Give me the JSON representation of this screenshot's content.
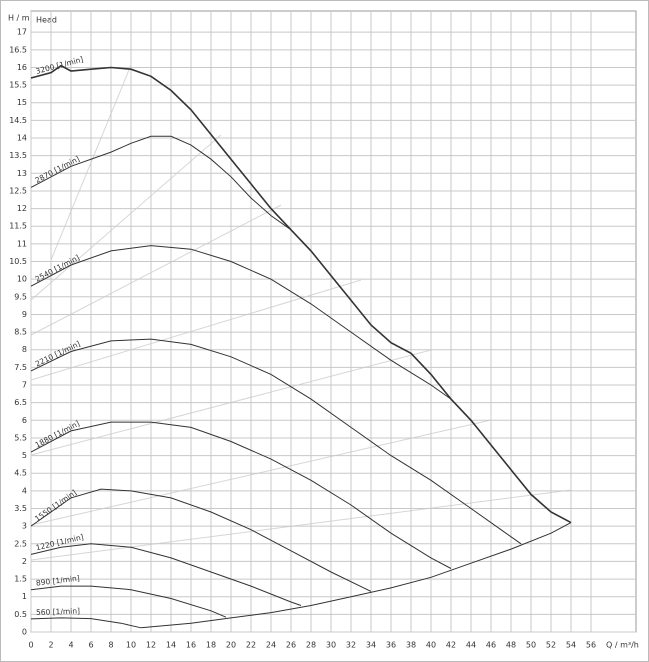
{
  "chart_data": {
    "type": "line",
    "title": "Head",
    "y_label": "H / m",
    "x_label": "Q / m³/h",
    "xlim": [
      0,
      60.5
    ],
    "ylim": [
      0,
      17.6
    ],
    "xticks": [
      0,
      2,
      4,
      6,
      8,
      10,
      12,
      14,
      16,
      18,
      20,
      22,
      24,
      26,
      28,
      30,
      32,
      34,
      36,
      38,
      40,
      42,
      44,
      46,
      48,
      50,
      52,
      54,
      56
    ],
    "yticks": [
      0,
      0.5,
      1,
      1.5,
      2,
      2.5,
      3,
      3.5,
      4,
      4.5,
      5,
      5.5,
      6,
      6.5,
      7,
      7.5,
      8,
      8.5,
      9,
      9.5,
      10,
      10.5,
      11,
      11.5,
      12,
      12.5,
      13,
      13.5,
      14,
      14.5,
      15,
      15.5,
      16,
      16.5,
      17
    ],
    "grid": true,
    "series": [
      {
        "name": "3200 [1/min]",
        "color": "#333333",
        "x": [
          0,
          2,
          3,
          4,
          6,
          8,
          10,
          12,
          14,
          16,
          18,
          20,
          22,
          24,
          26,
          28,
          30,
          32,
          34,
          36,
          38,
          40,
          42,
          44,
          46,
          48,
          50,
          52,
          54
        ],
        "values": [
          15.7,
          15.85,
          16.05,
          15.9,
          15.95,
          16.0,
          15.95,
          15.75,
          15.35,
          14.8,
          14.1,
          13.4,
          12.7,
          12.0,
          11.4,
          10.8,
          10.1,
          9.4,
          8.7,
          8.2,
          7.9,
          7.3,
          6.6,
          6.0,
          5.3,
          4.6,
          3.9,
          3.4,
          3.1
        ]
      },
      {
        "name": "2870 [1/min]",
        "color": "#333333",
        "x": [
          0,
          4,
          8,
          10,
          12,
          14,
          16,
          18,
          20,
          22,
          24,
          26
        ],
        "values": [
          12.6,
          13.2,
          13.6,
          13.85,
          14.05,
          14.05,
          13.8,
          13.4,
          12.9,
          12.3,
          11.8,
          11.4
        ]
      },
      {
        "name": "2540 [1/min]",
        "color": "#333333",
        "x": [
          0,
          4,
          8,
          12,
          16,
          20,
          24,
          28,
          32,
          36,
          40,
          42
        ],
        "values": [
          9.8,
          10.4,
          10.8,
          10.95,
          10.85,
          10.5,
          10.0,
          9.3,
          8.5,
          7.7,
          7.0,
          6.6
        ]
      },
      {
        "name": "2210 [1/min]",
        "color": "#333333",
        "x": [
          0,
          4,
          8,
          12,
          16,
          20,
          24,
          28,
          32,
          36,
          40,
          44,
          47,
          49
        ],
        "values": [
          7.4,
          7.95,
          8.25,
          8.3,
          8.15,
          7.8,
          7.3,
          6.6,
          5.8,
          5.0,
          4.3,
          3.5,
          2.9,
          2.5
        ]
      },
      {
        "name": "1880 [1/min]",
        "color": "#333333",
        "x": [
          0,
          4,
          8,
          12,
          16,
          20,
          24,
          28,
          32,
          36,
          40,
          42
        ],
        "values": [
          5.1,
          5.7,
          5.95,
          5.95,
          5.8,
          5.4,
          4.9,
          4.3,
          3.6,
          2.8,
          2.1,
          1.8
        ]
      },
      {
        "name": "1550 [1/min]",
        "color": "#333333",
        "x": [
          0,
          4,
          7,
          10,
          14,
          18,
          22,
          26,
          30,
          34
        ],
        "values": [
          3.0,
          3.8,
          4.05,
          4.0,
          3.8,
          3.4,
          2.9,
          2.3,
          1.7,
          1.15
        ]
      },
      {
        "name": "1220 [1/min]",
        "color": "#333333",
        "x": [
          0,
          3,
          6,
          10,
          14,
          18,
          22,
          26,
          27
        ],
        "values": [
          2.2,
          2.4,
          2.5,
          2.4,
          2.1,
          1.7,
          1.3,
          0.85,
          0.75
        ]
      },
      {
        "name": "890 [1/min]",
        "color": "#333333",
        "x": [
          0,
          3,
          6,
          10,
          14,
          18,
          19.5
        ],
        "values": [
          1.2,
          1.3,
          1.3,
          1.2,
          0.95,
          0.6,
          0.42
        ]
      },
      {
        "name": "560 [1/min]",
        "color": "#333333",
        "x": [
          0,
          3,
          6,
          9,
          11
        ],
        "values": [
          0.37,
          0.4,
          0.38,
          0.25,
          0.12
        ]
      },
      {
        "color": "#333333",
        "x": [
          11,
          16,
          20,
          24,
          28,
          32,
          36,
          40,
          44,
          48,
          52,
          54
        ],
        "values": [
          0.12,
          0.25,
          0.4,
          0.55,
          0.75,
          1.0,
          1.25,
          1.55,
          1.95,
          2.35,
          2.8,
          3.1
        ]
      }
    ]
  }
}
